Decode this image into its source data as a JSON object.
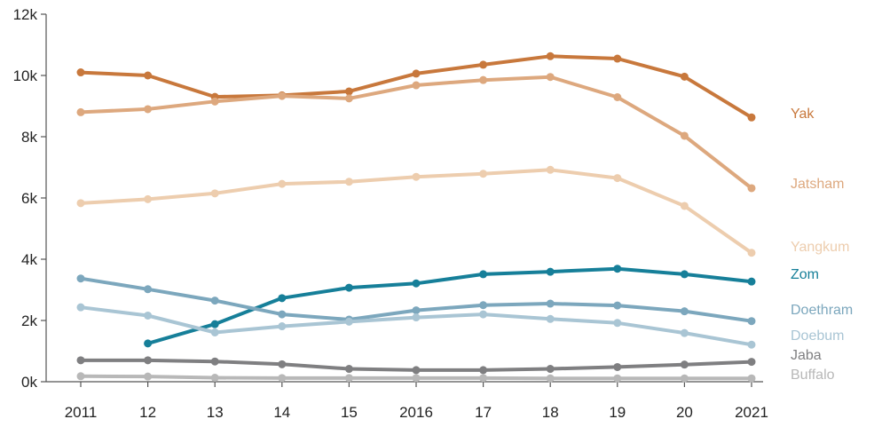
{
  "chart_data": {
    "type": "line",
    "title": "",
    "xlabel": "",
    "ylabel": "",
    "x": [
      "2011",
      "12",
      "13",
      "14",
      "15",
      "2016",
      "17",
      "18",
      "19",
      "20",
      "2021"
    ],
    "ylim": [
      0,
      12000
    ],
    "yticks": [
      {
        "value": 0,
        "label": "0k"
      },
      {
        "value": 2000,
        "label": "2k"
      },
      {
        "value": 4000,
        "label": "4k"
      },
      {
        "value": 6000,
        "label": "6k"
      },
      {
        "value": 8000,
        "label": "8k"
      },
      {
        "value": 10000,
        "label": "10k"
      },
      {
        "value": 12000,
        "label": "12k"
      }
    ],
    "grid": false,
    "legend": "direct labels at right end of lines",
    "series": [
      {
        "name": "Yak",
        "color": "#C8783C",
        "values": [
          10100,
          10000,
          9300,
          9350,
          9480,
          10060,
          10350,
          10630,
          10550,
          9960,
          8630
        ]
      },
      {
        "name": "Jatsham",
        "color": "#DDA87E",
        "values": [
          8800,
          8900,
          9150,
          9330,
          9250,
          9680,
          9850,
          9950,
          9290,
          8030,
          6320
        ]
      },
      {
        "name": "Yangkum",
        "color": "#EDCDAE",
        "values": [
          5830,
          5960,
          6150,
          6460,
          6530,
          6690,
          6790,
          6920,
          6650,
          5740,
          4210
        ]
      },
      {
        "name": "Zom",
        "color": "#167F99",
        "values": [
          null,
          1250,
          1880,
          2730,
          3070,
          3210,
          3510,
          3590,
          3690,
          3510,
          3270
        ]
      },
      {
        "name": "Doethram",
        "color": "#7CA7BD",
        "values": [
          3370,
          3020,
          2650,
          2200,
          2030,
          2330,
          2500,
          2550,
          2490,
          2300,
          1980
        ]
      },
      {
        "name": "Doebum",
        "color": "#A9C5D4",
        "values": [
          2430,
          2160,
          1610,
          1810,
          1960,
          2100,
          2200,
          2050,
          1920,
          1590,
          1210
        ]
      },
      {
        "name": "Jaba",
        "color": "#7F7F81",
        "values": [
          700,
          700,
          660,
          570,
          420,
          380,
          380,
          420,
          480,
          560,
          650
        ]
      },
      {
        "name": "Buffalo",
        "color": "#B8B8B8",
        "values": [
          180,
          170,
          130,
          120,
          120,
          120,
          120,
          110,
          110,
          110,
          110
        ]
      }
    ]
  }
}
